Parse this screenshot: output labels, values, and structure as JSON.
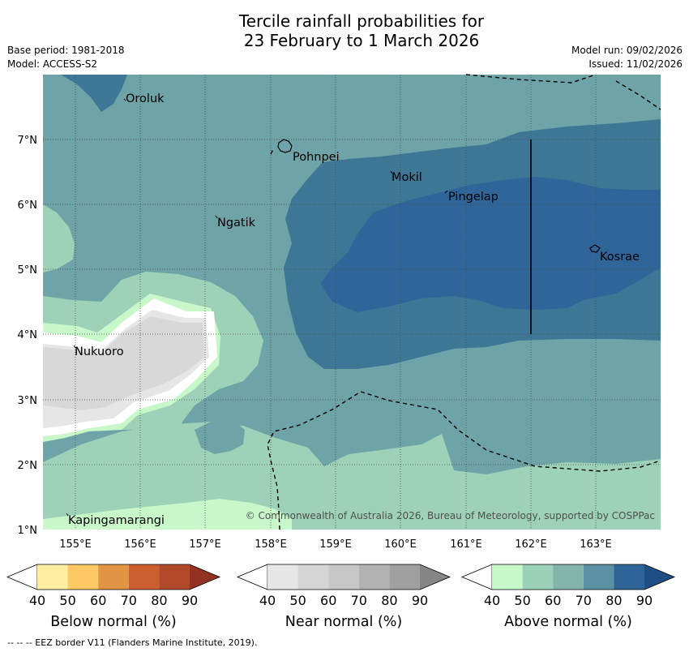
{
  "title": {
    "line1": "Tercile rainfall probabilities for",
    "line2": "23 February to 1 March 2026"
  },
  "meta": {
    "base_period": "Base period: 1981-2018",
    "model": "Model: ACCESS-S2",
    "model_run": "Model run: 09/02/2026",
    "issued": "Issued: 11/02/2026"
  },
  "map": {
    "lon_ticks": [
      "155°E",
      "156°E",
      "157°E",
      "158°E",
      "159°E",
      "160°E",
      "161°E",
      "162°E",
      "163°E"
    ],
    "lat_ticks": [
      "7°N",
      "6°N",
      "5°N",
      "4°N",
      "3°N",
      "2°N",
      "1°N"
    ],
    "places": {
      "oroluk": "Oroluk",
      "pohnpei": "Pohnpei",
      "mokil": "Mokil",
      "pingelap": "Pingelap",
      "ngatik": "Ngatik",
      "kosrae": "Kosrae",
      "nukuoro": "Nukuoro",
      "kapingamarangi": "Kapingamarangi"
    },
    "copyright": "© Commonwealth of Australia 2026, Bureau of Meteorology, supported by COSPPac"
  },
  "colorbars": {
    "labels": [
      "40",
      "50",
      "60",
      "70",
      "80",
      "90"
    ],
    "below_title": "Below normal (%)",
    "near_title": "Near normal (%)",
    "above_title": "Above normal (%)",
    "below_colors": [
      "#ffeda0",
      "#fec965",
      "#e09444",
      "#cd5e2f",
      "#b2482a",
      "#923322"
    ],
    "near_colors": [
      "#e6e6e6",
      "#d5d5d5",
      "#c7c7c7",
      "#b2b2b2",
      "#a0a0a0",
      "#868686"
    ],
    "above_colors": [
      "#c7f8c9",
      "#9bd1b8",
      "#82b4aa",
      "#5a91a3",
      "#2f6596",
      "#1e4e84"
    ]
  },
  "footer": "--  --  -- EEZ border V11 (Flanders Marine Institute, 2019)."
}
